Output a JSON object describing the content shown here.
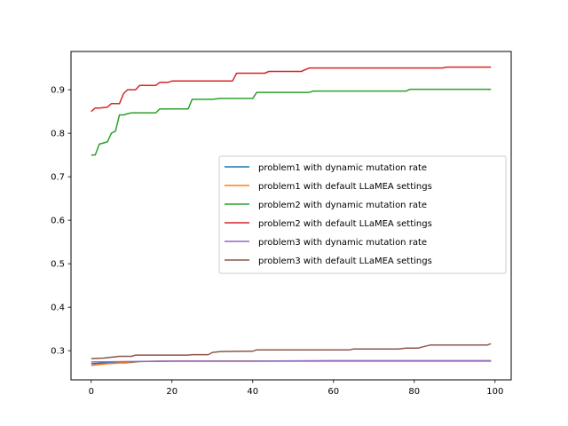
{
  "chart_data": {
    "type": "line",
    "title": "",
    "xlabel": "",
    "ylabel": "",
    "xlim": [
      -5,
      104
    ],
    "ylim": [
      0.233,
      0.988
    ],
    "xticks": [
      0,
      20,
      40,
      60,
      80,
      100
    ],
    "xtick_labels": [
      "0",
      "20",
      "40",
      "60",
      "80",
      "100"
    ],
    "yticks": [
      0.3,
      0.4,
      0.5,
      0.6,
      0.7,
      0.8,
      0.9
    ],
    "ytick_labels": [
      "0.3",
      "0.4",
      "0.5",
      "0.6",
      "0.7",
      "0.8",
      "0.9"
    ],
    "grid": false,
    "legend_position": "center-right",
    "series": [
      {
        "name": "problem1 with dynamic mutation rate",
        "color": "#1f77b4",
        "x": [
          0,
          2,
          4,
          6,
          8,
          10,
          12,
          20,
          40,
          60,
          80,
          99
        ],
        "y": [
          0.27,
          0.271,
          0.272,
          0.272,
          0.272,
          0.273,
          0.275,
          0.276,
          0.276,
          0.276,
          0.276,
          0.276
        ]
      },
      {
        "name": "problem1 with default LLaMEA settings",
        "color": "#ff7f0e",
        "x": [
          0,
          2,
          4,
          6,
          8,
          10,
          12,
          20,
          40,
          60,
          80,
          99
        ],
        "y": [
          0.266,
          0.268,
          0.27,
          0.271,
          0.273,
          0.274,
          0.275,
          0.276,
          0.276,
          0.276,
          0.276,
          0.276
        ]
      },
      {
        "name": "problem2 with dynamic mutation rate",
        "color": "#2ca02c",
        "x": [
          0,
          1,
          2,
          4,
          5,
          6,
          7,
          8,
          9,
          10,
          16,
          17,
          24,
          25,
          30,
          32,
          40,
          41,
          54,
          55,
          78,
          79,
          99
        ],
        "y": [
          0.75,
          0.75,
          0.775,
          0.78,
          0.8,
          0.805,
          0.842,
          0.842,
          0.845,
          0.847,
          0.847,
          0.856,
          0.856,
          0.878,
          0.878,
          0.88,
          0.88,
          0.894,
          0.894,
          0.897,
          0.897,
          0.901,
          0.901
        ]
      },
      {
        "name": "problem2 with default LLaMEA settings",
        "color": "#d62728",
        "x": [
          0,
          1,
          2,
          4,
          5,
          7,
          8,
          9,
          11,
          12,
          16,
          17,
          19,
          20,
          35,
          36,
          43,
          44,
          52,
          54,
          87,
          88,
          99
        ],
        "y": [
          0.85,
          0.858,
          0.858,
          0.86,
          0.868,
          0.868,
          0.891,
          0.9,
          0.9,
          0.91,
          0.91,
          0.917,
          0.917,
          0.92,
          0.92,
          0.938,
          0.938,
          0.942,
          0.942,
          0.95,
          0.95,
          0.952,
          0.952
        ]
      },
      {
        "name": "problem3 with dynamic mutation rate",
        "color": "#9467bd",
        "x": [
          0,
          10,
          20,
          40,
          60,
          80,
          99
        ],
        "y": [
          0.274,
          0.275,
          0.276,
          0.276,
          0.277,
          0.277,
          0.277
        ]
      },
      {
        "name": "problem3 with default LLaMEA settings",
        "color": "#8c564b",
        "x": [
          0,
          3,
          5,
          7,
          10,
          11,
          24,
          25,
          29,
          30,
          32,
          37,
          40,
          41,
          64,
          65,
          76,
          78,
          81,
          83,
          84,
          98,
          99
        ],
        "y": [
          0.282,
          0.283,
          0.285,
          0.287,
          0.287,
          0.29,
          0.29,
          0.291,
          0.291,
          0.296,
          0.298,
          0.299,
          0.299,
          0.302,
          0.302,
          0.304,
          0.304,
          0.306,
          0.306,
          0.311,
          0.313,
          0.313,
          0.316
        ]
      }
    ]
  }
}
